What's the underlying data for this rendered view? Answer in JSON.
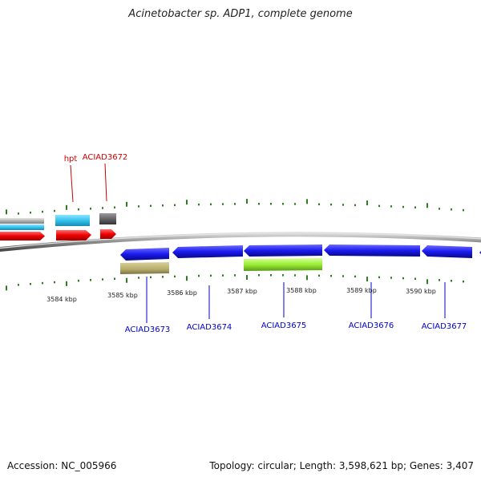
{
  "title": "Acinetobacter sp. ADP1, complete genome",
  "footer": {
    "accession": "Accession: NC_005966",
    "summary": "Topology: circular; Length: 3,598,621 bp; Genes: 3,407"
  },
  "colors": {
    "backbone": "#8c8c8c",
    "tick_major": "#2e7d1f",
    "forward_label": "#cc0000",
    "reverse_label": "#0000cc",
    "scale_text": "#222222"
  },
  "scale": [
    "3584 kbp",
    "3585 kbp",
    "3586 kbp",
    "3587 kbp",
    "3588 kbp",
    "3589 kbp",
    "3590 kbp"
  ],
  "forward_genes": [
    {
      "name": "hpt",
      "color": "#ff0000"
    },
    {
      "name": "ACIAD3672",
      "color": "#ff0000"
    }
  ],
  "reverse_genes": [
    {
      "name": "ACIAD3673",
      "color": "#1a1aee"
    },
    {
      "name": "ACIAD3674",
      "color": "#1a1aee"
    },
    {
      "name": "ACIAD3675",
      "color": "#1a1aee"
    },
    {
      "name": "ACIAD3676",
      "color": "#1a1aee"
    },
    {
      "name": "ACIAD3677",
      "color": "#1a1aee"
    }
  ],
  "feature_tracks": {
    "cds_light_blue": "#33c3ee",
    "cds_grey": "#b0b0b0",
    "cds_dark_grey": "#666666",
    "olive_feature": "#b5ab6a",
    "lime_feature": "#99ee33"
  }
}
